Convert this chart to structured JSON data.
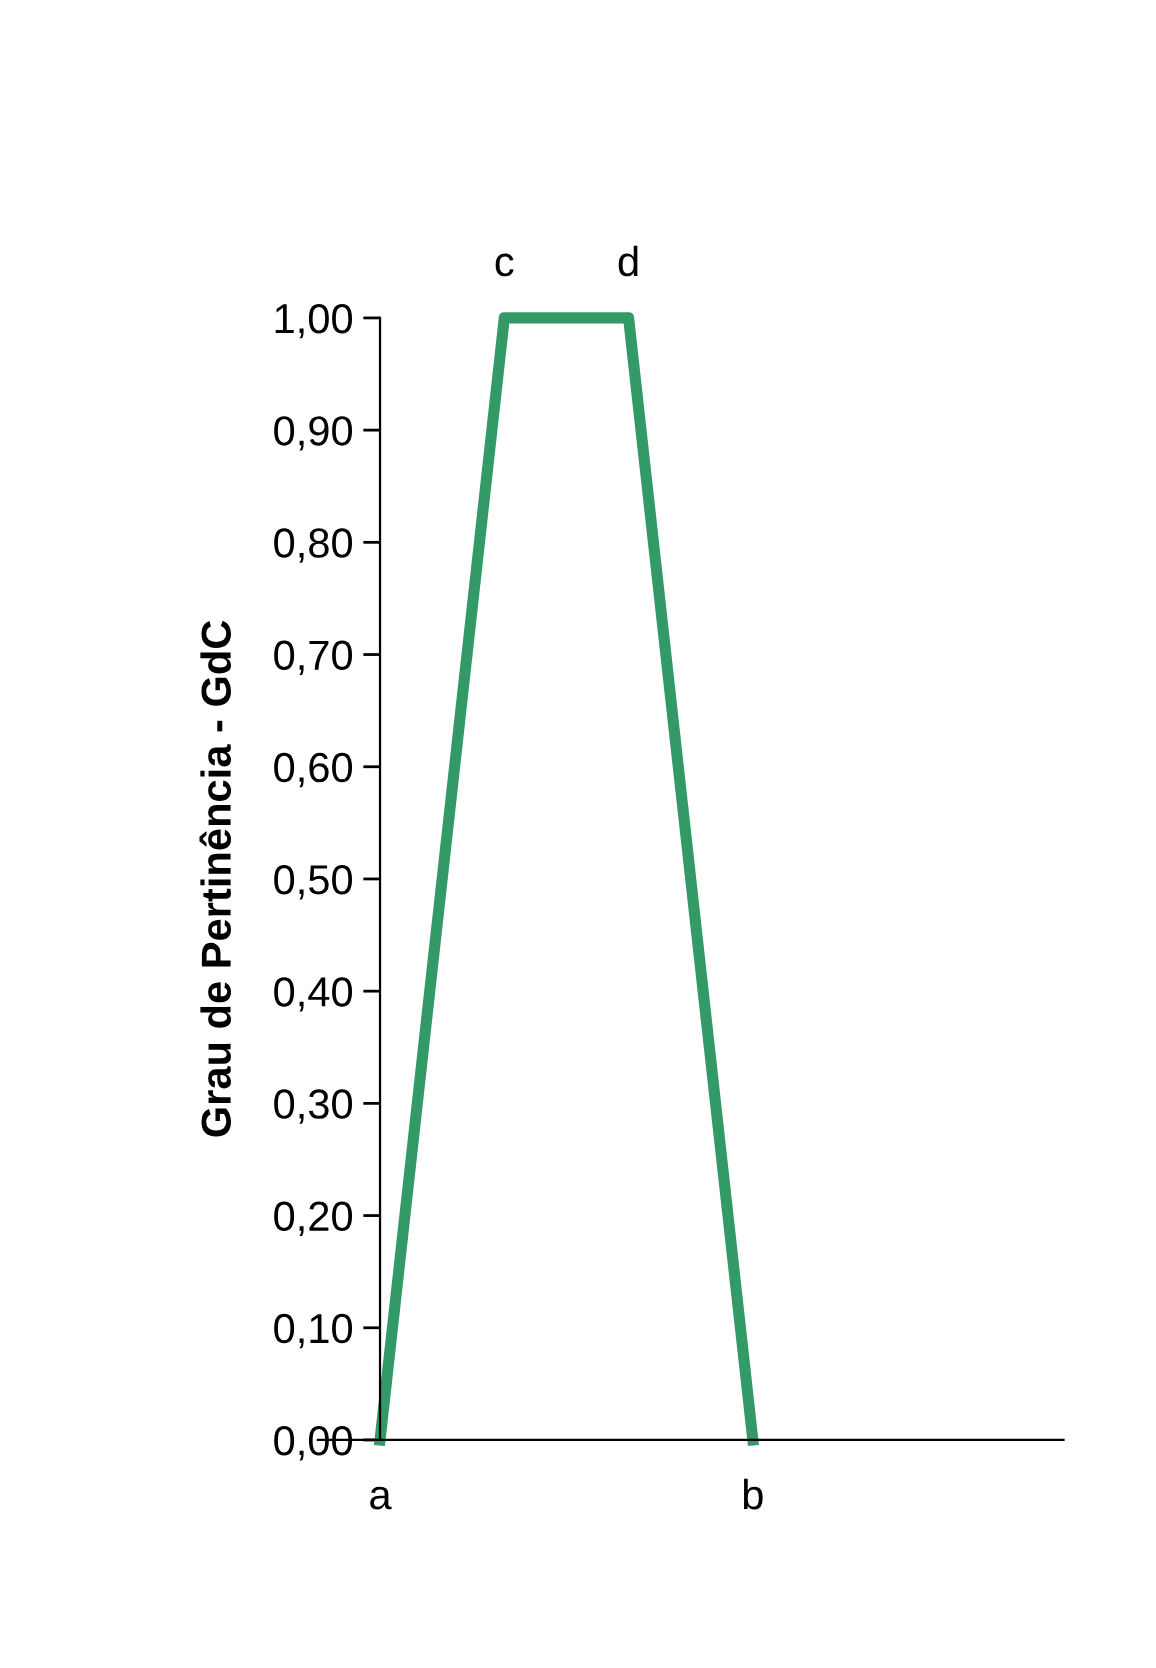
{
  "chart_data": {
    "type": "line",
    "ylabel": "Grau de Pertinência - GdC",
    "categories": [
      null,
      null,
      null,
      null,
      null,
      null
    ],
    "series": [
      {
        "color": "#339966",
        "values": [
          0,
          1,
          1,
          0,
          null,
          null
        ]
      }
    ],
    "ylim": [
      0,
      1
    ],
    "yticks": [
      {
        "value": 0,
        "label": "0,00"
      },
      {
        "value": 0.1,
        "label": "0,10"
      },
      {
        "value": 0.2,
        "label": "0,20"
      },
      {
        "value": 0.3,
        "label": "0,30"
      },
      {
        "value": 0.4,
        "label": "0,40"
      },
      {
        "value": 0.5,
        "label": "0,50"
      },
      {
        "value": 0.6,
        "label": "0,60"
      },
      {
        "value": 0.7,
        "label": "0,70"
      },
      {
        "value": 0.8,
        "label": "0,80"
      },
      {
        "value": 0.9,
        "label": "0,90"
      },
      {
        "value": 1,
        "label": "1,00"
      }
    ],
    "tick_labels": "y",
    "grid": false,
    "legend": false,
    "marker": "none",
    "line_style": "solid",
    "annotations": [
      "a",
      "c",
      "d",
      "b"
    ]
  }
}
